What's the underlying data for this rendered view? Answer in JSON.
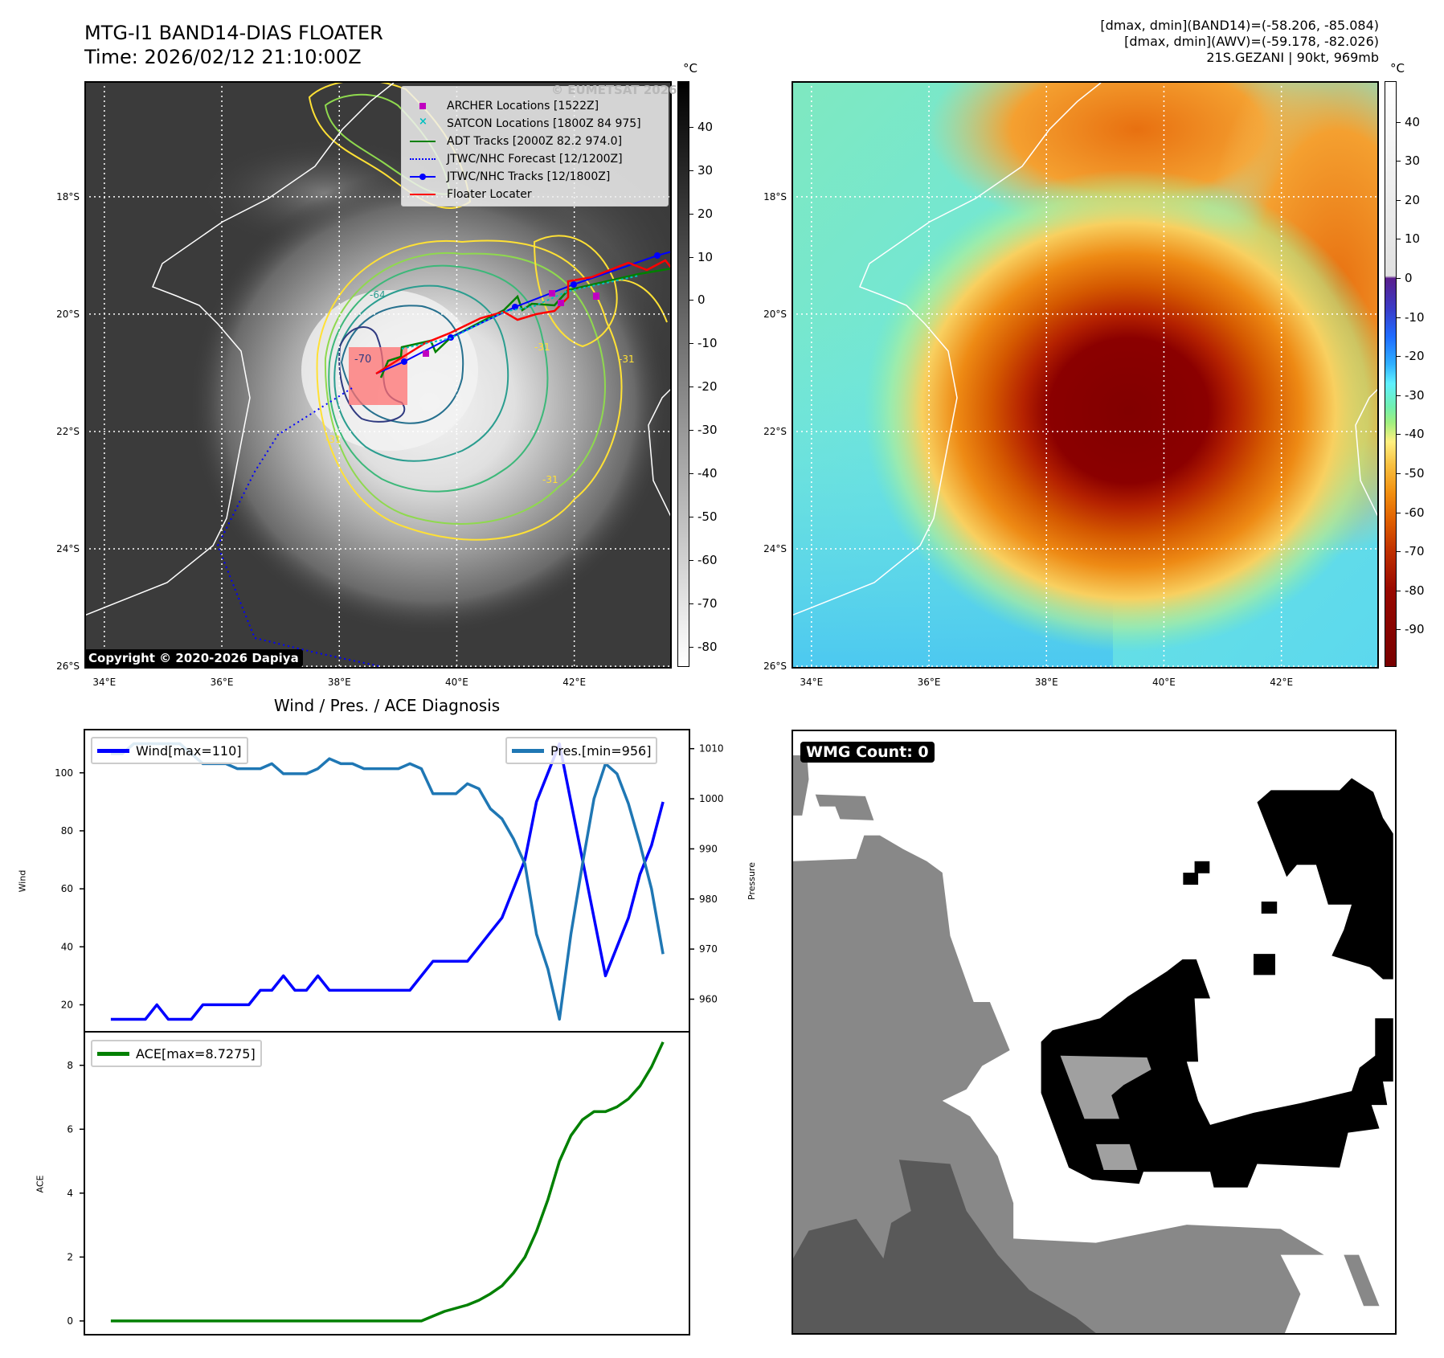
{
  "header": {
    "title": "MTG-I1 BAND14-DIAS FLOATER",
    "time": "Time: 2026/02/12 21:10:00Z",
    "stats": [
      "[dmax, dmin](BAND14)=(-58.206, -85.084)",
      "[dmax, dmin](AWV)=(-59.178, -82.026)",
      "21S.GEZANI | 90kt, 969mb"
    ]
  },
  "maps": {
    "lon_range": [
      33.66,
      43.66
    ],
    "lat_range": [
      -16.03,
      -26.04
    ],
    "lon_ticks": [
      {
        "value": 34,
        "label": "34°E"
      },
      {
        "value": 36,
        "label": "36°E"
      },
      {
        "value": 38,
        "label": "38°E"
      },
      {
        "value": 40,
        "label": "40°E"
      },
      {
        "value": 42,
        "label": "42°E"
      }
    ],
    "lat_ticks": [
      {
        "value": -18,
        "label": "18°S"
      },
      {
        "value": -20,
        "label": "20°S"
      },
      {
        "value": -22,
        "label": "22°S"
      },
      {
        "value": -24,
        "label": "24°S"
      },
      {
        "value": -26,
        "label": "26°S"
      }
    ]
  },
  "ir_map": {
    "watermark": "© EUMETSAT 2026",
    "copyright": "Copyright © 2020-2026 Dapiya",
    "contour_labels": [
      "-31",
      "-64",
      "-70",
      "-31",
      "-31",
      "-31"
    ],
    "legend": [
      {
        "label": "ARCHER Locations [1522Z]",
        "symbol": "square",
        "color": "#c000c0"
      },
      {
        "label": "SATCON Locations [1800Z 84 975]",
        "symbol": "x",
        "color": "#00c0c0"
      },
      {
        "label": "ADT Tracks [2000Z 82.2 974.0]",
        "symbol": "line",
        "color": "#008000"
      },
      {
        "label": "JTWC/NHC Forecast [12/1200Z]",
        "symbol": "dotted",
        "color": "#0000ff"
      },
      {
        "label": "JTWC/NHC Tracks [12/1800Z]",
        "symbol": "line-dot",
        "color": "#0000ff"
      },
      {
        "label": "Floater Locater",
        "symbol": "line",
        "color": "#ff0000"
      }
    ],
    "colorbar": {
      "unit": "°C",
      "ticks": [
        40,
        30,
        20,
        10,
        0,
        -10,
        -20,
        -30,
        -40,
        -50,
        -60,
        -70,
        -80
      ],
      "range": [
        50.3,
        -84.4
      ]
    }
  },
  "awv_map": {
    "colorbar": {
      "unit": "°C",
      "ticks": [
        40,
        30,
        20,
        10,
        0,
        -10,
        -20,
        -30,
        -40,
        -50,
        -60,
        -70,
        -80,
        -90
      ],
      "range": [
        50.2,
        -99.4
      ]
    }
  },
  "diagnosis": {
    "title": "Wind / Pres. / ACE Diagnosis"
  },
  "chart_data": [
    {
      "type": "line",
      "title": "Wind / Pres. / ACE Diagnosis",
      "ylabel": "Wind",
      "y2label": "Pressure",
      "xlim": [
        -2.3,
        50.3
      ],
      "ylim": [
        10.7,
        114.9
      ],
      "y2lim": [
        953.5,
        1013.8
      ],
      "yticks": [
        20,
        40,
        60,
        80,
        100
      ],
      "y2ticks": [
        960,
        970,
        980,
        990,
        1000,
        1010
      ],
      "series": [
        {
          "name": "Wind[max=110]",
          "axis": "left",
          "color": "#0000ff",
          "values": [
            15,
            15,
            15,
            15,
            20,
            15,
            15,
            15,
            20,
            20,
            20,
            20,
            20,
            25,
            25,
            30,
            25,
            25,
            30,
            25,
            25,
            25,
            25,
            25,
            25,
            25,
            25,
            30,
            35,
            35,
            35,
            35,
            40,
            45,
            50,
            60,
            70,
            90,
            100,
            110,
            90,
            70,
            50,
            30,
            40,
            50,
            65,
            75,
            90
          ]
        },
        {
          "name": "Pres.[min=956]",
          "axis": "right",
          "color": "#1f77b4",
          "values": [
            1009,
            1009,
            1011,
            1011,
            1011,
            1011,
            1011,
            1009,
            1007,
            1007,
            1007,
            1006,
            1006,
            1006,
            1007,
            1005,
            1005,
            1005,
            1006,
            1008,
            1007,
            1007,
            1006,
            1006,
            1006,
            1006,
            1007,
            1006,
            1001,
            1001,
            1001,
            1003,
            1002,
            998,
            996,
            992,
            987,
            973,
            966,
            956,
            973,
            987,
            1000,
            1007,
            1005,
            999,
            991,
            982,
            969
          ]
        }
      ]
    },
    {
      "type": "line",
      "ylabel": "ACE",
      "xlim": [
        -2.3,
        50.3
      ],
      "ylim": [
        -0.43,
        9.05
      ],
      "yticks": [
        0,
        2,
        4,
        6,
        8
      ],
      "series": [
        {
          "name": "ACE[max=8.7275]",
          "axis": "left",
          "color": "#008000",
          "values": [
            0,
            0,
            0,
            0,
            0,
            0,
            0,
            0,
            0,
            0,
            0,
            0,
            0,
            0,
            0,
            0,
            0,
            0,
            0,
            0,
            0,
            0,
            0,
            0,
            0,
            0,
            0,
            0,
            0.15,
            0.3,
            0.4,
            0.5,
            0.65,
            0.85,
            1.1,
            1.5,
            2.0,
            2.8,
            3.8,
            5.0,
            5.8,
            6.3,
            6.55,
            6.55,
            6.7,
            6.95,
            7.35,
            7.95,
            8.7275
          ]
        }
      ]
    }
  ],
  "wmg": {
    "label": "WMG Count: 0"
  }
}
